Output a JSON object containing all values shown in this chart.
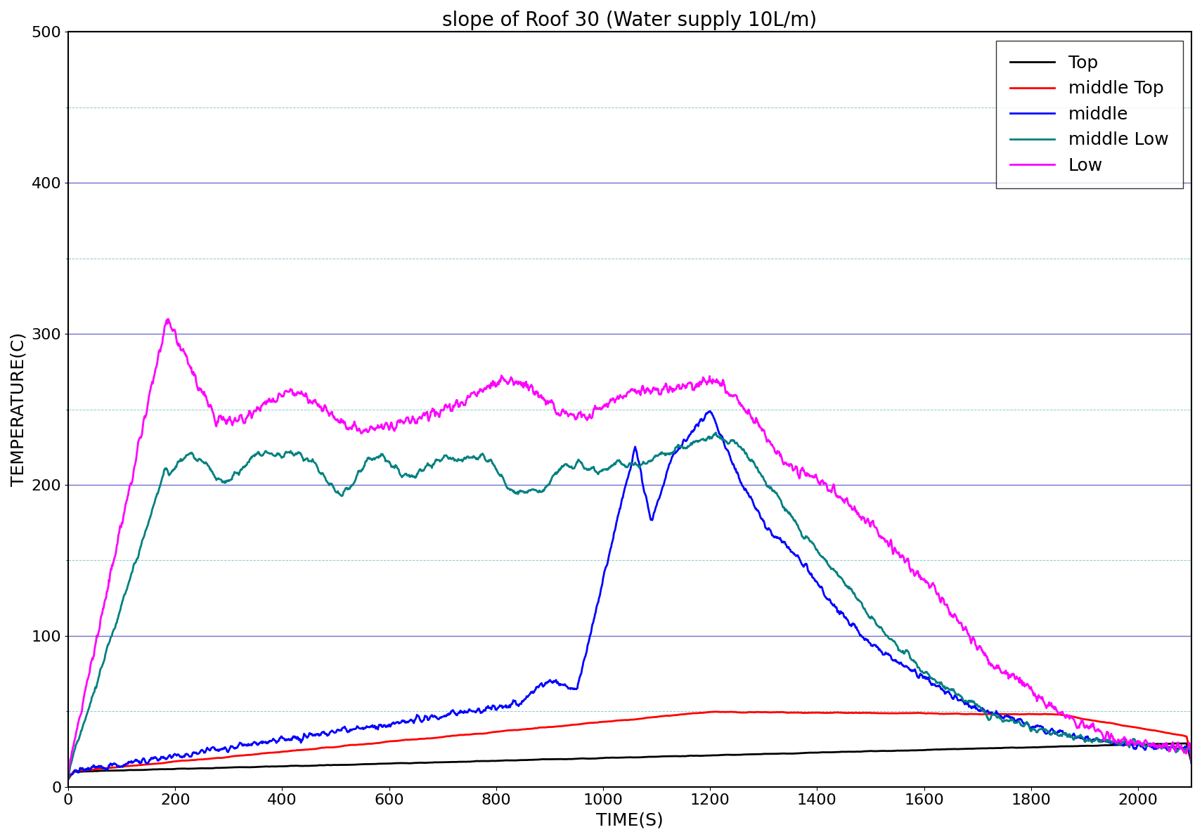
{
  "title": "slope of Roof 30 (Water supply 10L/m)",
  "xlabel": "TIME(S)",
  "ylabel": "TEMPERATURE(C)",
  "xlim": [
    0,
    2100
  ],
  "ylim": [
    0,
    500
  ],
  "xticks": [
    0,
    200,
    400,
    600,
    800,
    1000,
    1200,
    1400,
    1600,
    1800,
    2000
  ],
  "yticks": [
    0,
    100,
    200,
    300,
    400,
    500
  ],
  "legend_labels": [
    "Top",
    "middle Top",
    "middle",
    "middle Low",
    "Low"
  ],
  "line_colors": [
    "black",
    "red",
    "blue",
    "#008080",
    "magenta"
  ],
  "figsize": [
    17.1,
    11.94
  ],
  "dpi": 100,
  "title_fontsize": 20,
  "label_fontsize": 18,
  "tick_fontsize": 16,
  "legend_fontsize": 18,
  "line_width": 2.0,
  "grid_major_color": "#7070cc",
  "grid_minor_color": "#88cccc",
  "background_color": "white"
}
